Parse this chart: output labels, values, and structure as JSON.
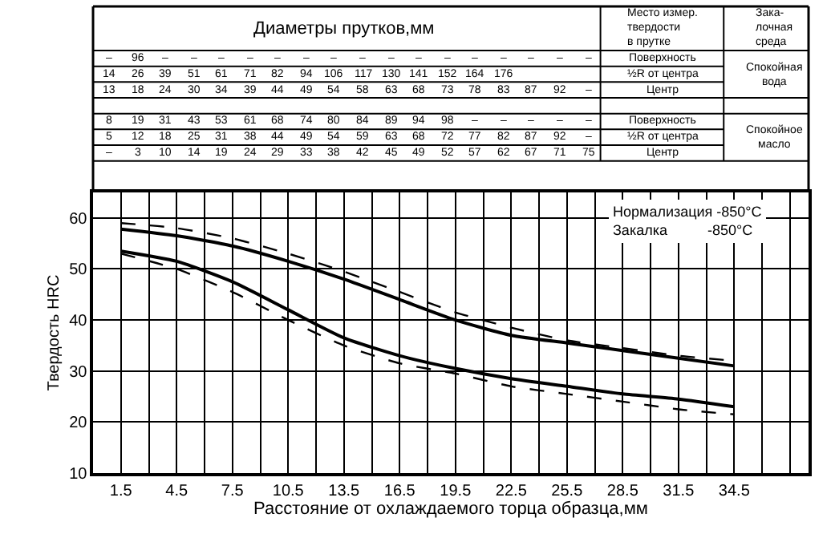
{
  "chart_data": {
    "type": "line",
    "xlabel": "Расстояние от охлаждаемого торца образца,мм",
    "ylabel": "Твердость HRC",
    "x": [
      1.5,
      4.5,
      7.5,
      10.5,
      13.5,
      16.5,
      19.5,
      22.5,
      25.5,
      28.5,
      31.5,
      34.5
    ],
    "series": [
      {
        "color": "#000000",
        "line_style": "solid",
        "values": [
          57.8,
          56.5,
          54.5,
          51.5,
          48,
          44,
          40,
          37,
          35.5,
          34,
          32.5,
          31
        ]
      },
      {
        "color": "#000000",
        "line_style": "dashed",
        "values": [
          59,
          58,
          56,
          53,
          49.5,
          45.5,
          41.5,
          38.5,
          36,
          34.5,
          33,
          32
        ]
      },
      {
        "color": "#000000",
        "line_style": "solid",
        "values": [
          53.5,
          51.5,
          47.5,
          42,
          36.5,
          33,
          30.5,
          28.5,
          27,
          25.5,
          24.5,
          23
        ]
      },
      {
        "color": "#000000",
        "line_style": "dashed",
        "values": [
          53,
          50,
          45.5,
          40,
          35,
          31.5,
          29.5,
          27,
          25.5,
          24,
          22.5,
          21.5
        ]
      }
    ],
    "xlim": [
      0,
      38.5
    ],
    "ylim": [
      10,
      65
    ],
    "xticks": [
      1.5,
      {
        "value": 3,
        "label": null
      },
      4.5,
      {
        "value": 6,
        "label": null
      },
      7.5,
      {
        "value": 9,
        "label": null
      },
      10.5,
      {
        "value": 12,
        "label": null
      },
      13.5,
      {
        "value": 15,
        "label": null
      },
      16.5,
      {
        "value": 18,
        "label": null
      },
      19.5,
      {
        "value": 21,
        "label": null
      },
      22.5,
      {
        "value": 24,
        "label": null
      },
      25.5,
      {
        "value": 27,
        "label": null
      },
      28.5,
      {
        "value": 30,
        "label": null
      },
      31.5,
      {
        "value": 33,
        "label": null
      },
      34.5,
      {
        "value": 36,
        "label": null
      },
      {
        "value": 37.5,
        "label": null
      }
    ],
    "yticks": [
      10,
      20,
      30,
      40,
      50,
      60
    ],
    "grid": true,
    "marker": "none",
    "annotations": [
      "Нормализация -850°C\nЗакалка          -850°C",
      "Диаметры прутков,мм",
      "Место измер.\nтвердости\nв прутке",
      "Зака-\nлочная\nсреда",
      "– 96 – – – – – – – – – – – – – – – –",
      "14 26 39 51 61 71 82 94 106 117 130 141 152 164 176",
      "13 18 24 30 34 39 44 49 54 58 63 68 73 78 83 87 92 –",
      "8 19 31 43 53 61 68 74 80 84 89 94 98 – – – – –",
      "5 12 18 25 31 38 44 49 54 59 63 68 72 77 82 87 92 –",
      "– 3 10 14 19 24 29 33 38 42 45 49 52 57 62 67 71 75",
      "Поверхность",
      "½R от центра",
      "Центр",
      "Поверхность",
      "½R от центра",
      "Центр",
      "Спокойная\nвода",
      "Спокойное\nмасло"
    ]
  }
}
